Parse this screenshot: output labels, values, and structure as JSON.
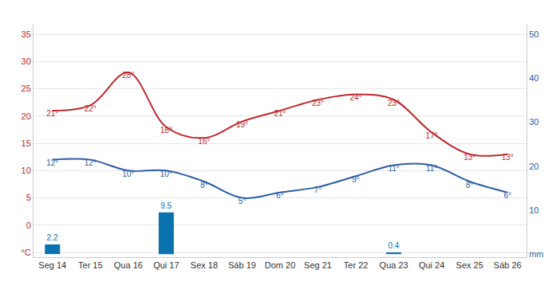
{
  "chart_data": {
    "type": "line",
    "categories": [
      "Seg 14",
      "Ter 15",
      "Qua 16",
      "Qui 17",
      "Sex 18",
      "Sáb 19",
      "Dom 20",
      "Seg 21",
      "Ter 22",
      "Qua 23",
      "Qui 24",
      "Sex 25",
      "Sáb 26"
    ],
    "series": [
      {
        "type": "line",
        "color": "#c0282d",
        "line_style": "solid",
        "values": [
          21,
          22,
          28,
          18,
          16,
          19,
          21,
          23,
          24,
          23,
          17,
          13,
          13
        ],
        "value_labels": [
          "21°",
          "22°",
          "28°",
          "18°",
          "16°",
          "19°",
          "21°",
          "23°",
          "24°",
          "23°",
          "17°",
          "13°",
          "13°"
        ]
      },
      {
        "type": "line",
        "color": "#2a5ca8",
        "line_style": "solid",
        "values": [
          12,
          12,
          10,
          10,
          8,
          5,
          6,
          7,
          9,
          11,
          11,
          8,
          6
        ],
        "value_labels": [
          "12°",
          "12°",
          "10°",
          "10°",
          "8°",
          "5°",
          "6°",
          "7°",
          "9°",
          "11°",
          "11°",
          "8°",
          "6°"
        ]
      },
      {
        "type": "bar",
        "axis": "y2",
        "color": "#0b72b0",
        "values": [
          2.2,
          null,
          null,
          9.5,
          null,
          null,
          null,
          null,
          null,
          0.4,
          null,
          null,
          null
        ]
      }
    ],
    "ylim": [
      -5.86,
      36.9
    ],
    "yticks": [
      {
        "value": -5,
        "label": "°C"
      },
      0,
      5,
      10,
      15,
      20,
      25,
      30,
      35
    ],
    "y2lim": [
      -0.7,
      52.4
    ],
    "y2ticks": [
      {
        "value": 0,
        "label": "mm"
      },
      10,
      20,
      30,
      40,
      50
    ],
    "grid": true,
    "data_labels": true
  }
}
